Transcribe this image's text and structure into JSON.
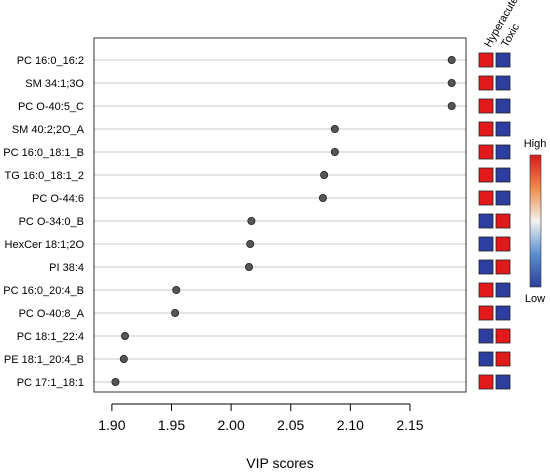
{
  "chart_data": {
    "type": "scatter",
    "title": "",
    "xlabel": "VIP scores",
    "ylabel": "",
    "xlim": [
      1.885,
      2.197
    ],
    "xticks": [
      1.9,
      1.95,
      2.0,
      2.05,
      2.1,
      2.15
    ],
    "xtick_labels": [
      "1.90",
      "1.95",
      "2.00",
      "2.05",
      "2.10",
      "2.15"
    ],
    "grid": "horizontal",
    "categories": [
      "PC 16:0_16:2",
      "SM 34:1;3O",
      "PC O-40:5_C",
      "SM 40:2;2O_A",
      "PC 16:0_18:1_B",
      "TG 16:0_18:1_2",
      "PC O-44:6",
      "PC O-34:0_B",
      "HexCer 18:1;2O",
      "PI 38:4",
      "PC 16:0_20:4_B",
      "PC O-40:8_A",
      "PC 18:1_22:4",
      "PE 18:1_20:4_B",
      "PC 17:1_18:1"
    ],
    "values": [
      2.185,
      2.185,
      2.185,
      2.087,
      2.087,
      2.078,
      2.077,
      2.017,
      2.016,
      2.015,
      1.954,
      1.953,
      1.911,
      1.91,
      1.903
    ],
    "groups": [
      "Hyperacute",
      "Toxic"
    ],
    "group_levels": [
      [
        "High",
        "Low"
      ],
      [
        "High",
        "Low"
      ],
      [
        "High",
        "Low"
      ],
      [
        "High",
        "Low"
      ],
      [
        "High",
        "Low"
      ],
      [
        "High",
        "Low"
      ],
      [
        "High",
        "Low"
      ],
      [
        "Low",
        "High"
      ],
      [
        "Low",
        "High"
      ],
      [
        "Low",
        "High"
      ],
      [
        "High",
        "Low"
      ],
      [
        "High",
        "Low"
      ],
      [
        "Low",
        "High"
      ],
      [
        "Low",
        "High"
      ],
      [
        "High",
        "Low"
      ]
    ],
    "colorbar": {
      "high_label": "High",
      "low_label": "Low"
    },
    "colors": {
      "high": "#e31a1c",
      "low": "#2c3ea0",
      "point": "#555555"
    }
  }
}
